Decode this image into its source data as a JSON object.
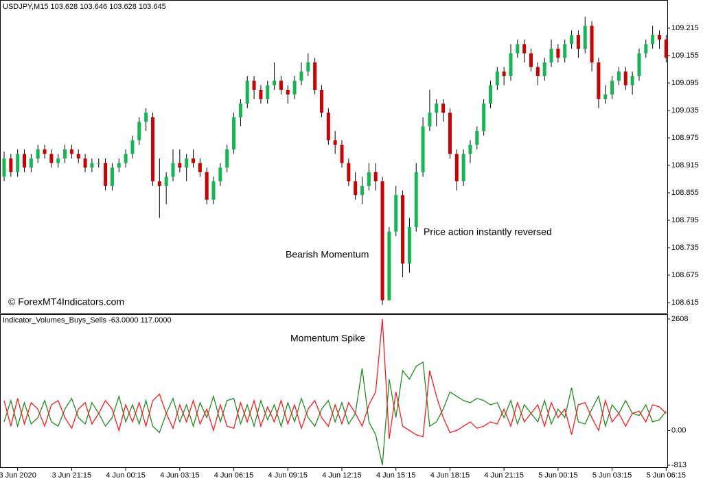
{
  "chart_data": [
    {
      "type": "candlestick",
      "title": "USDJPY,M15  103.628 103.646 103.628 103.645",
      "annotations": [
        "Bearish Momentum",
        "Price action instantly reversed",
        "© ForexMT4Indicators.com"
      ],
      "up_color": "#13b854",
      "down_color": "#cc0000",
      "ylim": [
        108.5925,
        109.275
      ],
      "yticks": [
        109.215,
        109.155,
        109.095,
        109.035,
        108.975,
        108.915,
        108.855,
        108.795,
        108.735,
        108.675,
        108.615
      ],
      "categories": [
        null,
        null,
        "3 Jun 2020",
        null,
        null,
        null,
        null,
        null,
        null,
        null,
        "3 Jun 21:15",
        null,
        null,
        null,
        null,
        null,
        null,
        null,
        "4 Jun 00:15",
        null,
        null,
        null,
        null,
        null,
        null,
        null,
        "4 Jun 03:15",
        null,
        null,
        null,
        null,
        null,
        null,
        null,
        "4 Jun 06:15",
        null,
        null,
        null,
        null,
        null,
        null,
        null,
        "4 Jun 09:15",
        null,
        null,
        null,
        null,
        null,
        null,
        null,
        "4 Jun 12:15",
        null,
        null,
        null,
        null,
        null,
        null,
        null,
        "4 Jun 15:15",
        null,
        null,
        null,
        null,
        null,
        null,
        null,
        "4 Jun 18:15",
        null,
        null,
        null,
        null,
        null,
        null,
        null,
        "4 Jun 21:15",
        null,
        null,
        null,
        null,
        null,
        null,
        null,
        "5 Jun 00:15",
        null,
        null,
        null,
        null,
        null,
        null,
        null,
        "5 Jun 03:15",
        null,
        null,
        null,
        null,
        null,
        null,
        null,
        "5 Jun 06:15"
      ],
      "ohlc": [
        [
          108.89,
          108.945,
          108.88,
          108.93
        ],
        [
          108.93,
          108.94,
          108.89,
          108.9
        ],
        [
          108.9,
          108.95,
          108.89,
          108.94
        ],
        [
          108.94,
          108.95,
          108.9,
          108.91
        ],
        [
          108.91,
          108.94,
          108.9,
          108.93
        ],
        [
          108.93,
          108.96,
          108.92,
          108.95
        ],
        [
          108.95,
          108.96,
          108.93,
          108.94
        ],
        [
          108.94,
          108.95,
          108.91,
          108.92
        ],
        [
          108.92,
          108.94,
          108.91,
          108.93
        ],
        [
          108.93,
          108.96,
          108.92,
          108.95
        ],
        [
          108.95,
          108.96,
          108.93,
          108.94
        ],
        [
          108.94,
          108.95,
          108.92,
          108.93
        ],
        [
          108.93,
          108.94,
          108.9,
          108.91
        ],
        [
          108.91,
          108.93,
          108.9,
          108.92
        ],
        [
          108.92,
          108.93,
          108.91,
          108.92
        ],
        [
          108.92,
          108.93,
          108.86,
          108.87
        ],
        [
          108.87,
          108.92,
          108.86,
          108.91
        ],
        [
          108.91,
          108.93,
          108.9,
          108.92
        ],
        [
          108.92,
          108.95,
          108.91,
          108.94
        ],
        [
          108.94,
          108.98,
          108.93,
          108.97
        ],
        [
          108.97,
          109.02,
          108.96,
          109.01
        ],
        [
          109.01,
          109.04,
          108.99,
          109.03
        ],
        [
          109.02,
          109.03,
          108.87,
          108.88
        ],
        [
          108.88,
          108.93,
          108.8,
          108.87
        ],
        [
          108.87,
          108.9,
          108.83,
          108.89
        ],
        [
          108.89,
          108.95,
          108.88,
          108.92
        ],
        [
          108.92,
          108.95,
          108.9,
          108.91
        ],
        [
          108.91,
          108.94,
          108.88,
          108.93
        ],
        [
          108.93,
          108.95,
          108.91,
          108.92
        ],
        [
          108.92,
          108.93,
          108.89,
          108.9
        ],
        [
          108.9,
          108.91,
          108.83,
          108.84
        ],
        [
          108.84,
          108.89,
          108.83,
          108.88
        ],
        [
          108.88,
          108.92,
          108.87,
          108.91
        ],
        [
          108.91,
          108.96,
          108.9,
          108.95
        ],
        [
          108.95,
          109.03,
          108.94,
          109.02
        ],
        [
          109.02,
          109.06,
          109.0,
          109.05
        ],
        [
          109.05,
          109.11,
          109.04,
          109.1
        ],
        [
          109.1,
          109.11,
          109.06,
          109.08
        ],
        [
          109.08,
          109.09,
          109.05,
          109.06
        ],
        [
          109.06,
          109.1,
          109.05,
          109.09
        ],
        [
          109.09,
          109.14,
          109.08,
          109.1
        ],
        [
          109.1,
          109.11,
          109.07,
          109.08
        ],
        [
          109.08,
          109.09,
          109.05,
          109.07
        ],
        [
          109.07,
          109.11,
          109.06,
          109.1
        ],
        [
          109.1,
          109.14,
          109.09,
          109.12
        ],
        [
          109.12,
          109.16,
          109.11,
          109.14
        ],
        [
          109.14,
          109.15,
          109.07,
          109.08
        ],
        [
          109.08,
          109.09,
          109.02,
          109.03
        ],
        [
          109.03,
          109.04,
          108.96,
          108.97
        ],
        [
          108.97,
          108.99,
          108.94,
          108.96
        ],
        [
          108.96,
          108.97,
          108.91,
          108.92
        ],
        [
          108.92,
          108.93,
          108.87,
          108.88
        ],
        [
          108.88,
          108.9,
          108.84,
          108.85
        ],
        [
          108.85,
          108.89,
          108.83,
          108.87
        ],
        [
          108.87,
          108.92,
          108.86,
          108.9
        ],
        [
          108.9,
          108.92,
          108.86,
          108.88
        ],
        [
          108.88,
          108.89,
          108.61,
          108.62
        ],
        [
          108.62,
          108.78,
          108.62,
          108.77
        ],
        [
          108.77,
          108.87,
          108.76,
          108.85
        ],
        [
          108.85,
          108.86,
          108.67,
          108.7
        ],
        [
          108.7,
          108.8,
          108.68,
          108.78
        ],
        [
          108.78,
          108.92,
          108.77,
          108.9
        ],
        [
          108.9,
          109.02,
          108.89,
          109.0
        ],
        [
          109.0,
          109.08,
          108.99,
          109.03
        ],
        [
          109.03,
          109.06,
          109.0,
          109.05
        ],
        [
          109.05,
          109.06,
          109.01,
          109.03
        ],
        [
          109.03,
          109.04,
          108.93,
          108.94
        ],
        [
          108.94,
          108.95,
          108.86,
          108.88
        ],
        [
          108.88,
          108.95,
          108.87,
          108.94
        ],
        [
          108.94,
          108.97,
          108.92,
          108.96
        ],
        [
          108.96,
          109.0,
          108.95,
          108.99
        ],
        [
          108.99,
          109.06,
          108.98,
          109.05
        ],
        [
          109.05,
          109.1,
          109.04,
          109.09
        ],
        [
          109.09,
          109.13,
          109.08,
          109.12
        ],
        [
          109.12,
          109.13,
          109.09,
          109.11
        ],
        [
          109.11,
          109.18,
          109.1,
          109.16
        ],
        [
          109.16,
          109.19,
          109.15,
          109.18
        ],
        [
          109.18,
          109.19,
          109.14,
          109.16
        ],
        [
          109.16,
          109.17,
          109.12,
          109.13
        ],
        [
          109.13,
          109.14,
          109.09,
          109.11
        ],
        [
          109.11,
          109.15,
          109.1,
          109.14
        ],
        [
          109.14,
          109.19,
          109.13,
          109.17
        ],
        [
          109.17,
          109.18,
          109.14,
          109.15
        ],
        [
          109.15,
          109.19,
          109.14,
          109.18
        ],
        [
          109.18,
          109.21,
          109.17,
          109.2
        ],
        [
          109.2,
          109.21,
          109.15,
          109.17
        ],
        [
          109.17,
          109.24,
          109.16,
          109.22
        ],
        [
          109.22,
          109.23,
          109.12,
          109.14
        ],
        [
          109.14,
          109.15,
          109.04,
          109.06
        ],
        [
          109.06,
          109.09,
          109.05,
          109.07
        ],
        [
          109.07,
          109.11,
          109.06,
          109.1
        ],
        [
          109.1,
          109.13,
          109.09,
          109.12
        ],
        [
          109.12,
          109.13,
          109.08,
          109.09
        ],
        [
          109.09,
          109.12,
          109.07,
          109.11
        ],
        [
          109.11,
          109.17,
          109.1,
          109.16
        ],
        [
          109.16,
          109.19,
          109.15,
          109.18
        ],
        [
          109.18,
          109.22,
          109.17,
          109.2
        ],
        [
          109.2,
          109.21,
          109.17,
          109.19
        ],
        [
          109.19,
          109.2,
          109.14,
          109.15
        ]
      ]
    },
    {
      "type": "line",
      "title": "Indicator_Volumes_Buys_Sells -63.0000 117.0000",
      "annotations": [
        "Momentum Spike"
      ],
      "ylim": [
        -813,
        2608
      ],
      "yticks": [
        2608,
        {
          "value": 0,
          "label": "0.00"
        },
        -813
      ],
      "series": [
        {
          "color": "#1e8c1e",
          "values": [
            200,
            700,
            100,
            650,
            150,
            300,
            700,
            200,
            100,
            500,
            750,
            300,
            150,
            650,
            400,
            100,
            300,
            800,
            200,
            600,
            150,
            700,
            100,
            -50,
            400,
            750,
            200,
            600,
            100,
            650,
            300,
            800,
            200,
            700,
            750,
            150,
            600,
            100,
            700,
            250,
            600,
            100,
            650,
            200,
            750,
            300,
            100,
            500,
            700,
            200,
            650,
            150,
            400,
            1450,
            200,
            -100,
            -813,
            1200,
            300,
            1400,
            1200,
            1500,
            1600,
            100,
            200,
            500,
            900,
            800,
            700,
            650,
            750,
            700,
            600,
            650,
            300,
            700,
            150,
            600,
            400,
            200,
            700,
            150,
            500,
            300,
            1000,
            200,
            150,
            500,
            800,
            100,
            600,
            400,
            700,
            400,
            350,
            600,
            200,
            250,
            450
          ]
        },
        {
          "color": "#ff1a1a",
          "values": [
            700,
            100,
            750,
            150,
            650,
            500,
            100,
            600,
            700,
            300,
            50,
            500,
            650,
            150,
            400,
            700,
            500,
            0,
            600,
            200,
            650,
            100,
            700,
            850,
            400,
            50,
            600,
            200,
            700,
            150,
            500,
            0,
            600,
            100,
            50,
            650,
            200,
            700,
            100,
            550,
            200,
            700,
            150,
            600,
            50,
            500,
            700,
            300,
            100,
            600,
            150,
            650,
            400,
            100,
            600,
            900,
            2608,
            -200,
            900,
            100,
            0,
            -100,
            -150,
            1400,
            800,
            300,
            -50,
            0,
            100,
            200,
            50,
            100,
            200,
            150,
            500,
            100,
            650,
            200,
            400,
            600,
            100,
            650,
            300,
            500,
            -100,
            600,
            650,
            300,
            0,
            700,
            200,
            400,
            100,
            400,
            450,
            200,
            600,
            550,
            400
          ]
        }
      ]
    }
  ]
}
